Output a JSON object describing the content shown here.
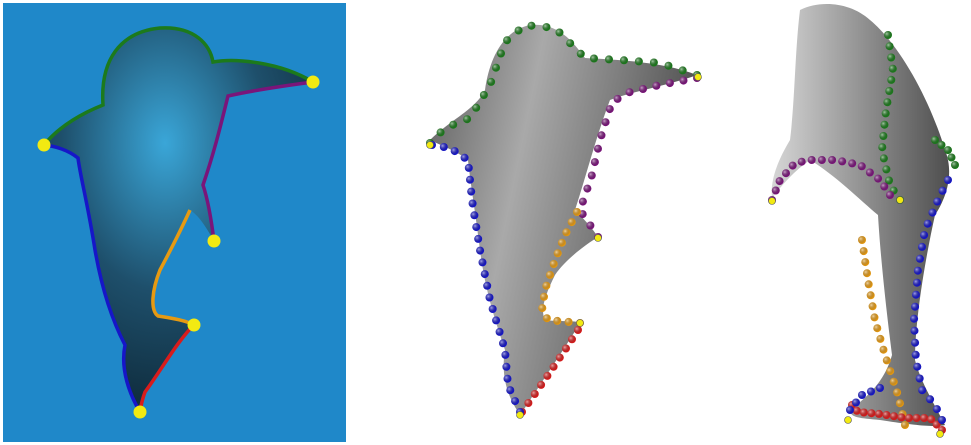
{
  "figure": {
    "panels": [
      {
        "id": "photo",
        "kind": "photograph with annotated contour"
      },
      {
        "id": "model-front",
        "kind": "3d reconstruction, front view"
      },
      {
        "id": "model-side",
        "kind": "3d reconstruction, side view"
      }
    ]
  },
  "colors": {
    "water": "#1f88c9",
    "head_segment": "#1c7a1c",
    "back_fin_segment": "#7a157a",
    "belly_segment": "#e69a12",
    "tail_segment": "#d81c1c",
    "left_side_segment": "#1616c8",
    "keypoint": "#f2ea12",
    "model_gray": "#8c8c8c"
  },
  "icons": {
    "keypoint_marker": "yellow-dot",
    "contour_marker": "colored-bead"
  }
}
